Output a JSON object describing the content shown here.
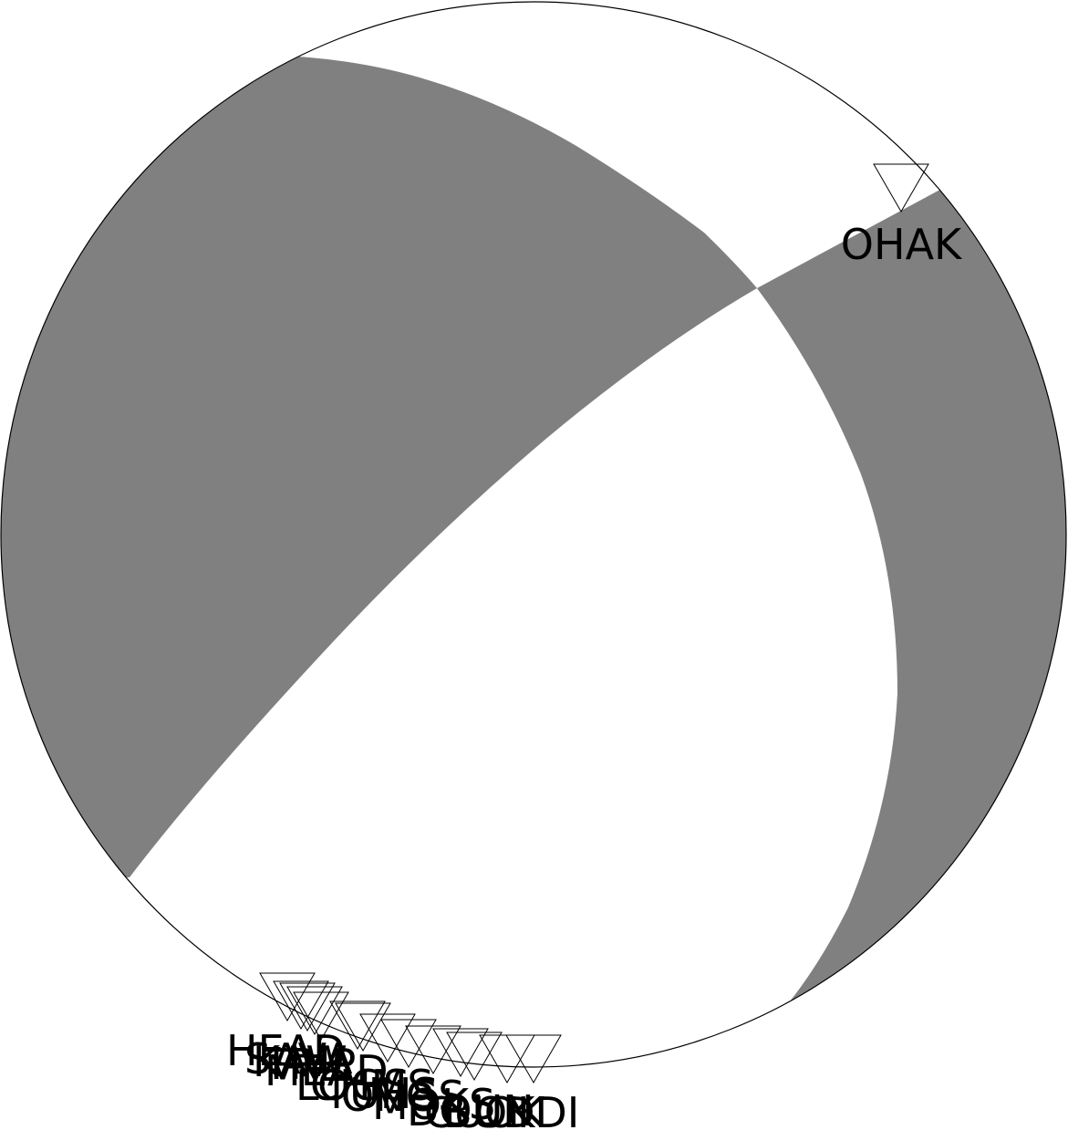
{
  "colors": {
    "compressional": "#808080",
    "dilatational": "#ffffff",
    "outline": "#000000"
  },
  "stations": [
    {
      "label": "OHAK",
      "marker": "down-triangle"
    },
    {
      "label": "HEAD",
      "marker": "down-triangle"
    },
    {
      "label": "SAVA",
      "marker": "down-triangle"
    },
    {
      "label": "KAW",
      "marker": "down-triangle"
    },
    {
      "label": "TRIP",
      "marker": "down-triangle"
    },
    {
      "label": "MEAD",
      "marker": "down-triangle"
    },
    {
      "label": "LOGS",
      "marker": "down-triangle"
    },
    {
      "label": "CHMS",
      "marker": "down-triangle"
    },
    {
      "label": "TUHS",
      "marker": "down-triangle"
    },
    {
      "label": "ONGS",
      "marker": "down-triangle"
    },
    {
      "label": "MOKS",
      "marker": "down-triangle"
    },
    {
      "label": "DOUN",
      "marker": "down-triangle"
    },
    {
      "label": "CUOK",
      "marker": "down-triangle"
    },
    {
      "label": "BUDI",
      "marker": "down-triangle"
    },
    {
      "label": "OKDI",
      "marker": "down-triangle"
    }
  ]
}
